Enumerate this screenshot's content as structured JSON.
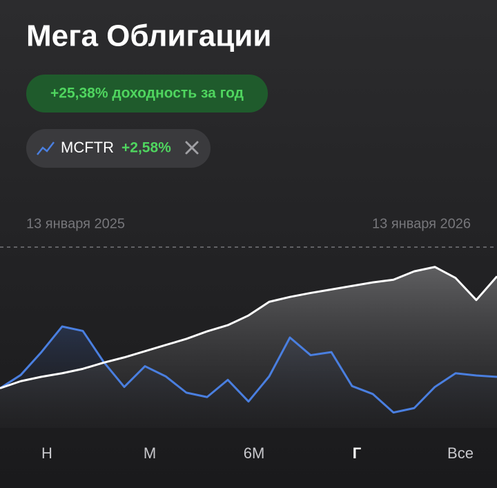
{
  "chart_data": {
    "type": "line",
    "title": "Мега Облигации",
    "return_badge": "+25,38% доходность за год",
    "benchmark_change": "+2,58%",
    "date_labels": [
      "13 января 2025",
      "13 января 2026"
    ],
    "periods": [
      "Н",
      "М",
      "6М",
      "Г",
      "Все"
    ],
    "selected_period": "Г",
    "ylim": [
      -9,
      32
    ],
    "series": [
      {
        "color": "#ffffff",
        "values": [
          0,
          1.6,
          2.6,
          3.4,
          4.4,
          5.8,
          7.0,
          8.4,
          9.8,
          11.2,
          12.9,
          14.3,
          16.5,
          19.6,
          20.7,
          21.6,
          22.4,
          23.2,
          24.0,
          24.6,
          26.5,
          27.5,
          25.0,
          20.0,
          25.38
        ]
      },
      {
        "name": "MCFTR",
        "color": "#4a7fe0",
        "values": [
          0,
          3.0,
          8.2,
          14.0,
          13.0,
          6.0,
          0.3,
          5.0,
          2.7,
          -1.0,
          -2.0,
          1.9,
          -3.0,
          2.7,
          11.5,
          7.5,
          8.2,
          0.5,
          -1.3,
          -5.5,
          -4.5,
          0.3,
          3.4,
          2.9,
          2.58
        ]
      }
    ]
  }
}
